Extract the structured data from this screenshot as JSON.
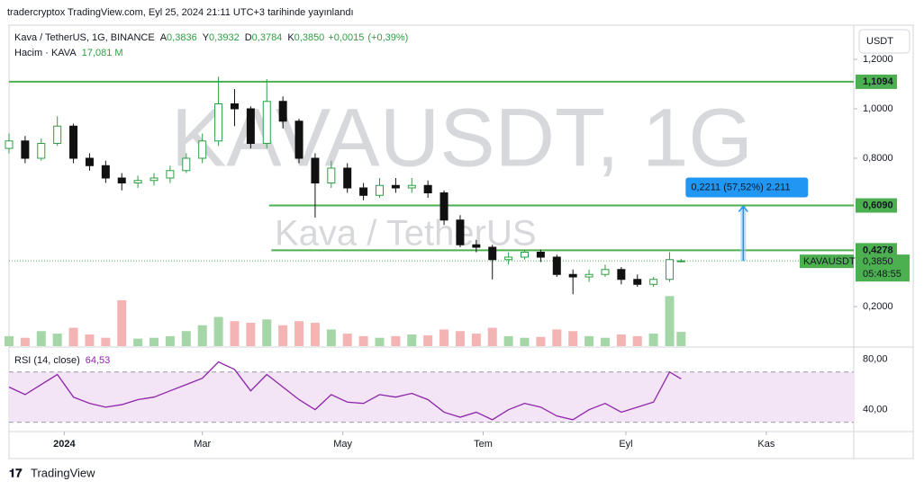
{
  "header": {
    "published": "tradercryptox TradingView.com, Eyl 25, 2024 21:11 UTC+3 tarihinde yayınlandı",
    "footer": "TradingView",
    "currency": "USDT"
  },
  "chart_data": {
    "type": "candlestick",
    "title": "Kava / TetherUS, 1G, BINANCE",
    "watermark": "KAVAUSDT, 1G",
    "watermark_subtitle": "Kava / TetherUS",
    "ohlc_legend": [
      {
        "key": "A",
        "value": 0.3836,
        "label": "0,3836"
      },
      {
        "key": "Y",
        "value": 0.3932,
        "label": "0,3932"
      },
      {
        "key": "D",
        "value": 0.3784,
        "label": "0,3784"
      },
      {
        "key": "K",
        "value": 0.385,
        "label": "0,3850"
      }
    ],
    "change": {
      "value": 0.0015,
      "label": "+0,0015"
    },
    "change_pct": {
      "value": 0.39,
      "label": "(+0,39%)"
    },
    "x": [
      -24,
      -17,
      -10,
      -3,
      4,
      11,
      18,
      25,
      32,
      39,
      46,
      53,
      60,
      67,
      74,
      81,
      88,
      95,
      102,
      109,
      116,
      123,
      130,
      137,
      144,
      151,
      158,
      165,
      172,
      179,
      186,
      193,
      200,
      207,
      214,
      221,
      228,
      235,
      242,
      249,
      256,
      263,
      268
    ],
    "open": [
      0.84,
      0.87,
      0.8,
      0.86,
      0.93,
      0.8,
      0.77,
      0.72,
      0.7,
      0.71,
      0.72,
      0.75,
      0.8,
      0.87,
      1.02,
      1.0,
      0.86,
      1.03,
      0.95,
      0.8,
      0.7,
      0.76,
      0.68,
      0.65,
      0.69,
      0.68,
      0.69,
      0.66,
      0.55,
      0.45,
      0.44,
      0.39,
      0.4,
      0.42,
      0.4,
      0.33,
      0.32,
      0.33,
      0.35,
      0.31,
      0.29,
      0.31,
      0.3836
    ],
    "high": [
      0.9,
      0.89,
      0.88,
      0.97,
      0.94,
      0.82,
      0.79,
      0.74,
      0.73,
      0.74,
      0.77,
      0.82,
      0.9,
      1.13,
      1.08,
      1.01,
      1.12,
      1.05,
      0.96,
      0.82,
      0.79,
      0.78,
      0.7,
      0.72,
      0.72,
      0.72,
      0.71,
      0.67,
      0.57,
      0.47,
      0.45,
      0.42,
      0.43,
      0.43,
      0.41,
      0.35,
      0.35,
      0.37,
      0.36,
      0.33,
      0.32,
      0.42,
      0.3932
    ],
    "low": [
      0.82,
      0.78,
      0.79,
      0.85,
      0.78,
      0.75,
      0.7,
      0.67,
      0.68,
      0.69,
      0.7,
      0.74,
      0.78,
      0.85,
      0.93,
      0.84,
      0.84,
      0.92,
      0.78,
      0.56,
      0.68,
      0.66,
      0.63,
      0.64,
      0.66,
      0.66,
      0.64,
      0.53,
      0.44,
      0.42,
      0.31,
      0.37,
      0.39,
      0.38,
      0.32,
      0.25,
      0.3,
      0.32,
      0.29,
      0.28,
      0.28,
      0.3,
      0.3784
    ],
    "close": [
      0.87,
      0.8,
      0.86,
      0.93,
      0.8,
      0.77,
      0.72,
      0.7,
      0.71,
      0.72,
      0.75,
      0.8,
      0.87,
      1.02,
      1.0,
      0.86,
      1.03,
      0.95,
      0.8,
      0.7,
      0.76,
      0.68,
      0.65,
      0.69,
      0.68,
      0.69,
      0.66,
      0.55,
      0.45,
      0.44,
      0.39,
      0.4,
      0.42,
      0.4,
      0.33,
      0.32,
      0.33,
      0.35,
      0.31,
      0.29,
      0.31,
      0.39,
      0.385
    ],
    "up_color": "#2f9e44",
    "down_color": "#111111",
    "xlim": [
      -24,
      343
    ],
    "xticks": [
      {
        "value": 0,
        "label": "2024"
      },
      {
        "value": 60,
        "label": "Mar"
      },
      {
        "value": 121,
        "label": "May"
      },
      {
        "value": 182,
        "label": "Tem"
      },
      {
        "value": 244,
        "label": "Eyl"
      },
      {
        "value": 305,
        "label": "Kas"
      }
    ],
    "ylim": [
      0.04,
      1.331
    ],
    "yticks": [
      {
        "value": 0.2,
        "label": "0,2000"
      },
      {
        "value": 0.8,
        "label": "0,8000"
      },
      {
        "value": 1,
        "label": "1,0000"
      },
      {
        "value": 1.2,
        "label": "1,2000"
      }
    ],
    "symbol": "KAVAUSDT",
    "last": {
      "value": 0.385,
      "label": "0,3850"
    },
    "countdown": "05:48:55",
    "levels": [
      {
        "value": 1.1094,
        "label": "1,1094",
        "from": -24
      },
      {
        "value": 0.609,
        "label": "0,6090",
        "from": 89
      },
      {
        "value": 0.4278,
        "label": "0,4278",
        "from": 90
      }
    ],
    "level_color": "#4caf50",
    "measure": {
      "x": 295,
      "from": 0.3844,
      "value": 0.2211,
      "label": "0,2211 (57,52%) 2.211"
    },
    "volume": {
      "name": "Hacim · KAVA",
      "values": [
        12,
        10,
        18,
        15,
        22,
        14,
        10,
        55,
        9,
        10,
        12,
        18,
        25,
        35,
        30,
        28,
        32,
        25,
        30,
        28,
        20,
        15,
        12,
        10,
        12,
        14,
        13,
        20,
        18,
        15,
        22,
        12,
        10,
        11,
        20,
        18,
        12,
        10,
        14,
        12,
        15,
        60,
        17.081
      ],
      "last": {
        "value": 17.081,
        "label": "17,081 M"
      },
      "ylim": [
        0,
        70
      ],
      "up_color": "#a5d6a7",
      "down_color": "#f4b4b4"
    },
    "rsi": {
      "name": "RSI (14, close)",
      "values": [
        58,
        52,
        60,
        68,
        50,
        45,
        42,
        44,
        48,
        50,
        55,
        60,
        65,
        78,
        72,
        55,
        68,
        58,
        48,
        40,
        52,
        46,
        45,
        52,
        50,
        53,
        48,
        38,
        34,
        38,
        32,
        40,
        45,
        42,
        35,
        32,
        40,
        45,
        38,
        42,
        46,
        70,
        64.53
      ],
      "last": {
        "value": 64.53,
        "label": "64,53"
      },
      "ylim": [
        24,
        87
      ],
      "yticks": [
        {
          "value": 40,
          "label": "40,00"
        },
        {
          "value": 80,
          "label": "80,00"
        }
      ],
      "bands": [
        30,
        70
      ],
      "color": "#8e24aa"
    }
  }
}
